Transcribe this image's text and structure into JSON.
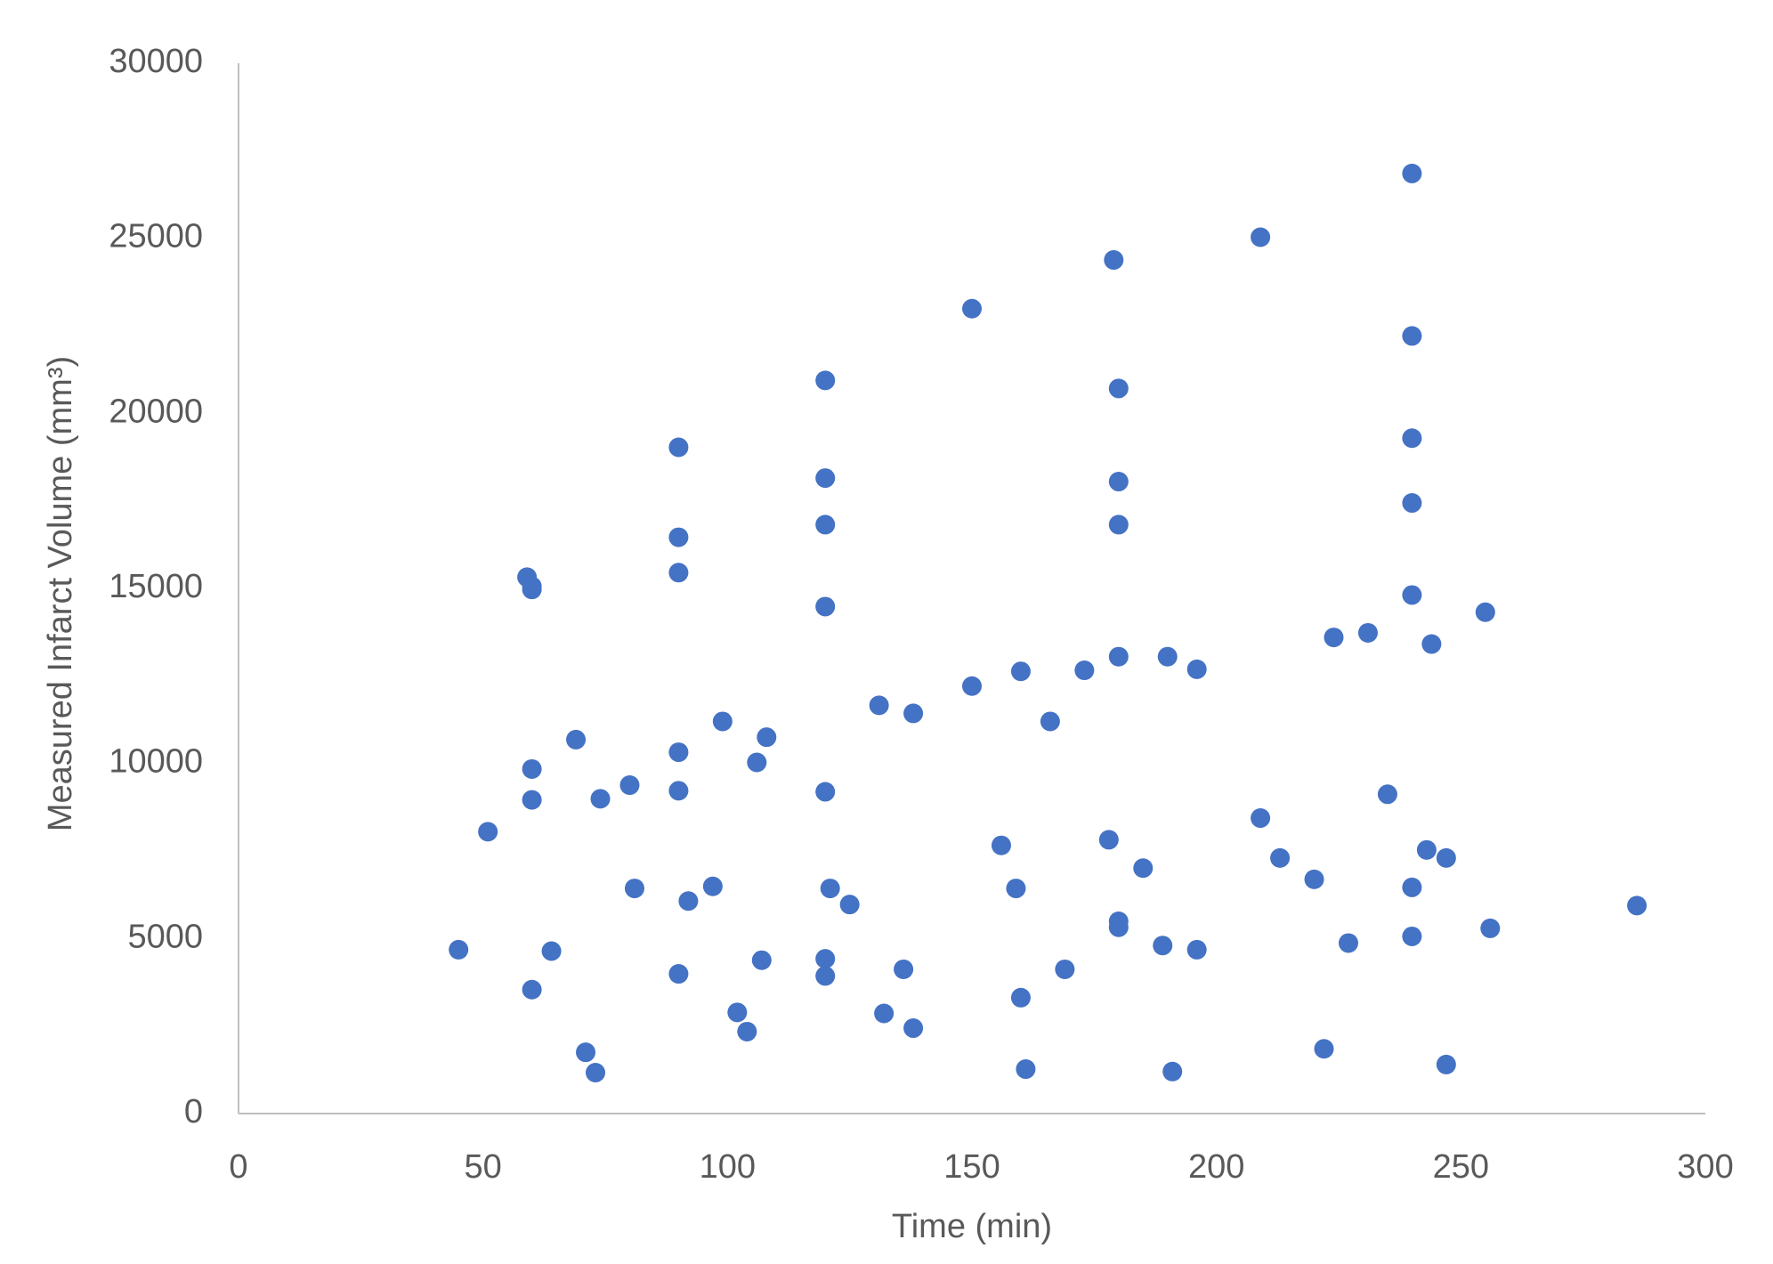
{
  "chart_data": {
    "type": "scatter",
    "xlabel": "Time (min)",
    "ylabel": "Measured Infarct Volume (mm³)",
    "color": "#4472c4",
    "grid": false,
    "xlim": [
      0,
      300
    ],
    "xticks": [
      0,
      50,
      100,
      150,
      200,
      250,
      300
    ],
    "ylim": [
      0,
      30000
    ],
    "yticks": [
      0,
      5000,
      10000,
      15000,
      20000,
      25000,
      30000
    ],
    "x": [
      45,
      51,
      59,
      60,
      60,
      60,
      60,
      60,
      64,
      69,
      71,
      73,
      74,
      80,
      81,
      90,
      90,
      90,
      90,
      90,
      90,
      92,
      97,
      99,
      102,
      104,
      106,
      107,
      108,
      120,
      120,
      120,
      120,
      120,
      121,
      120,
      120,
      125,
      131,
      132,
      136,
      138,
      138,
      150,
      150,
      156,
      159,
      160,
      160,
      161,
      166,
      169,
      173,
      178,
      179,
      180,
      180,
      180,
      180,
      180,
      180,
      185,
      189,
      190,
      191,
      196,
      196,
      209,
      209,
      213,
      220,
      222,
      224,
      227,
      231,
      235,
      240,
      240,
      240,
      240,
      240,
      240,
      240,
      243,
      244,
      247,
      247,
      255,
      256,
      286
    ],
    "values": [
      4680,
      8050,
      15320,
      15060,
      14970,
      9840,
      8960,
      3540,
      4640,
      10680,
      1750,
      1170,
      8990,
      9380,
      6430,
      19030,
      16460,
      15450,
      10320,
      9220,
      3990,
      6070,
      6490,
      11200,
      2890,
      2340,
      10030,
      4380,
      10750,
      20940,
      18150,
      16820,
      14480,
      9190,
      6430,
      4420,
      3930,
      5970,
      11660,
      2860,
      4120,
      11430,
      2440,
      22990,
      12210,
      7660,
      6430,
      12630,
      3310,
      1270,
      11200,
      4120,
      12660,
      7820,
      24380,
      20710,
      18050,
      16820,
      13050,
      5490,
      5320,
      7010,
      4800,
      13050,
      1200,
      12690,
      4680,
      25030,
      8440,
      7300,
      6690,
      1850,
      13600,
      4870,
      13730,
      9120,
      26850,
      22210,
      19290,
      17440,
      14810,
      6460,
      5060,
      7530,
      13410,
      7300,
      1400,
      14320,
      5290,
      5940
    ]
  }
}
